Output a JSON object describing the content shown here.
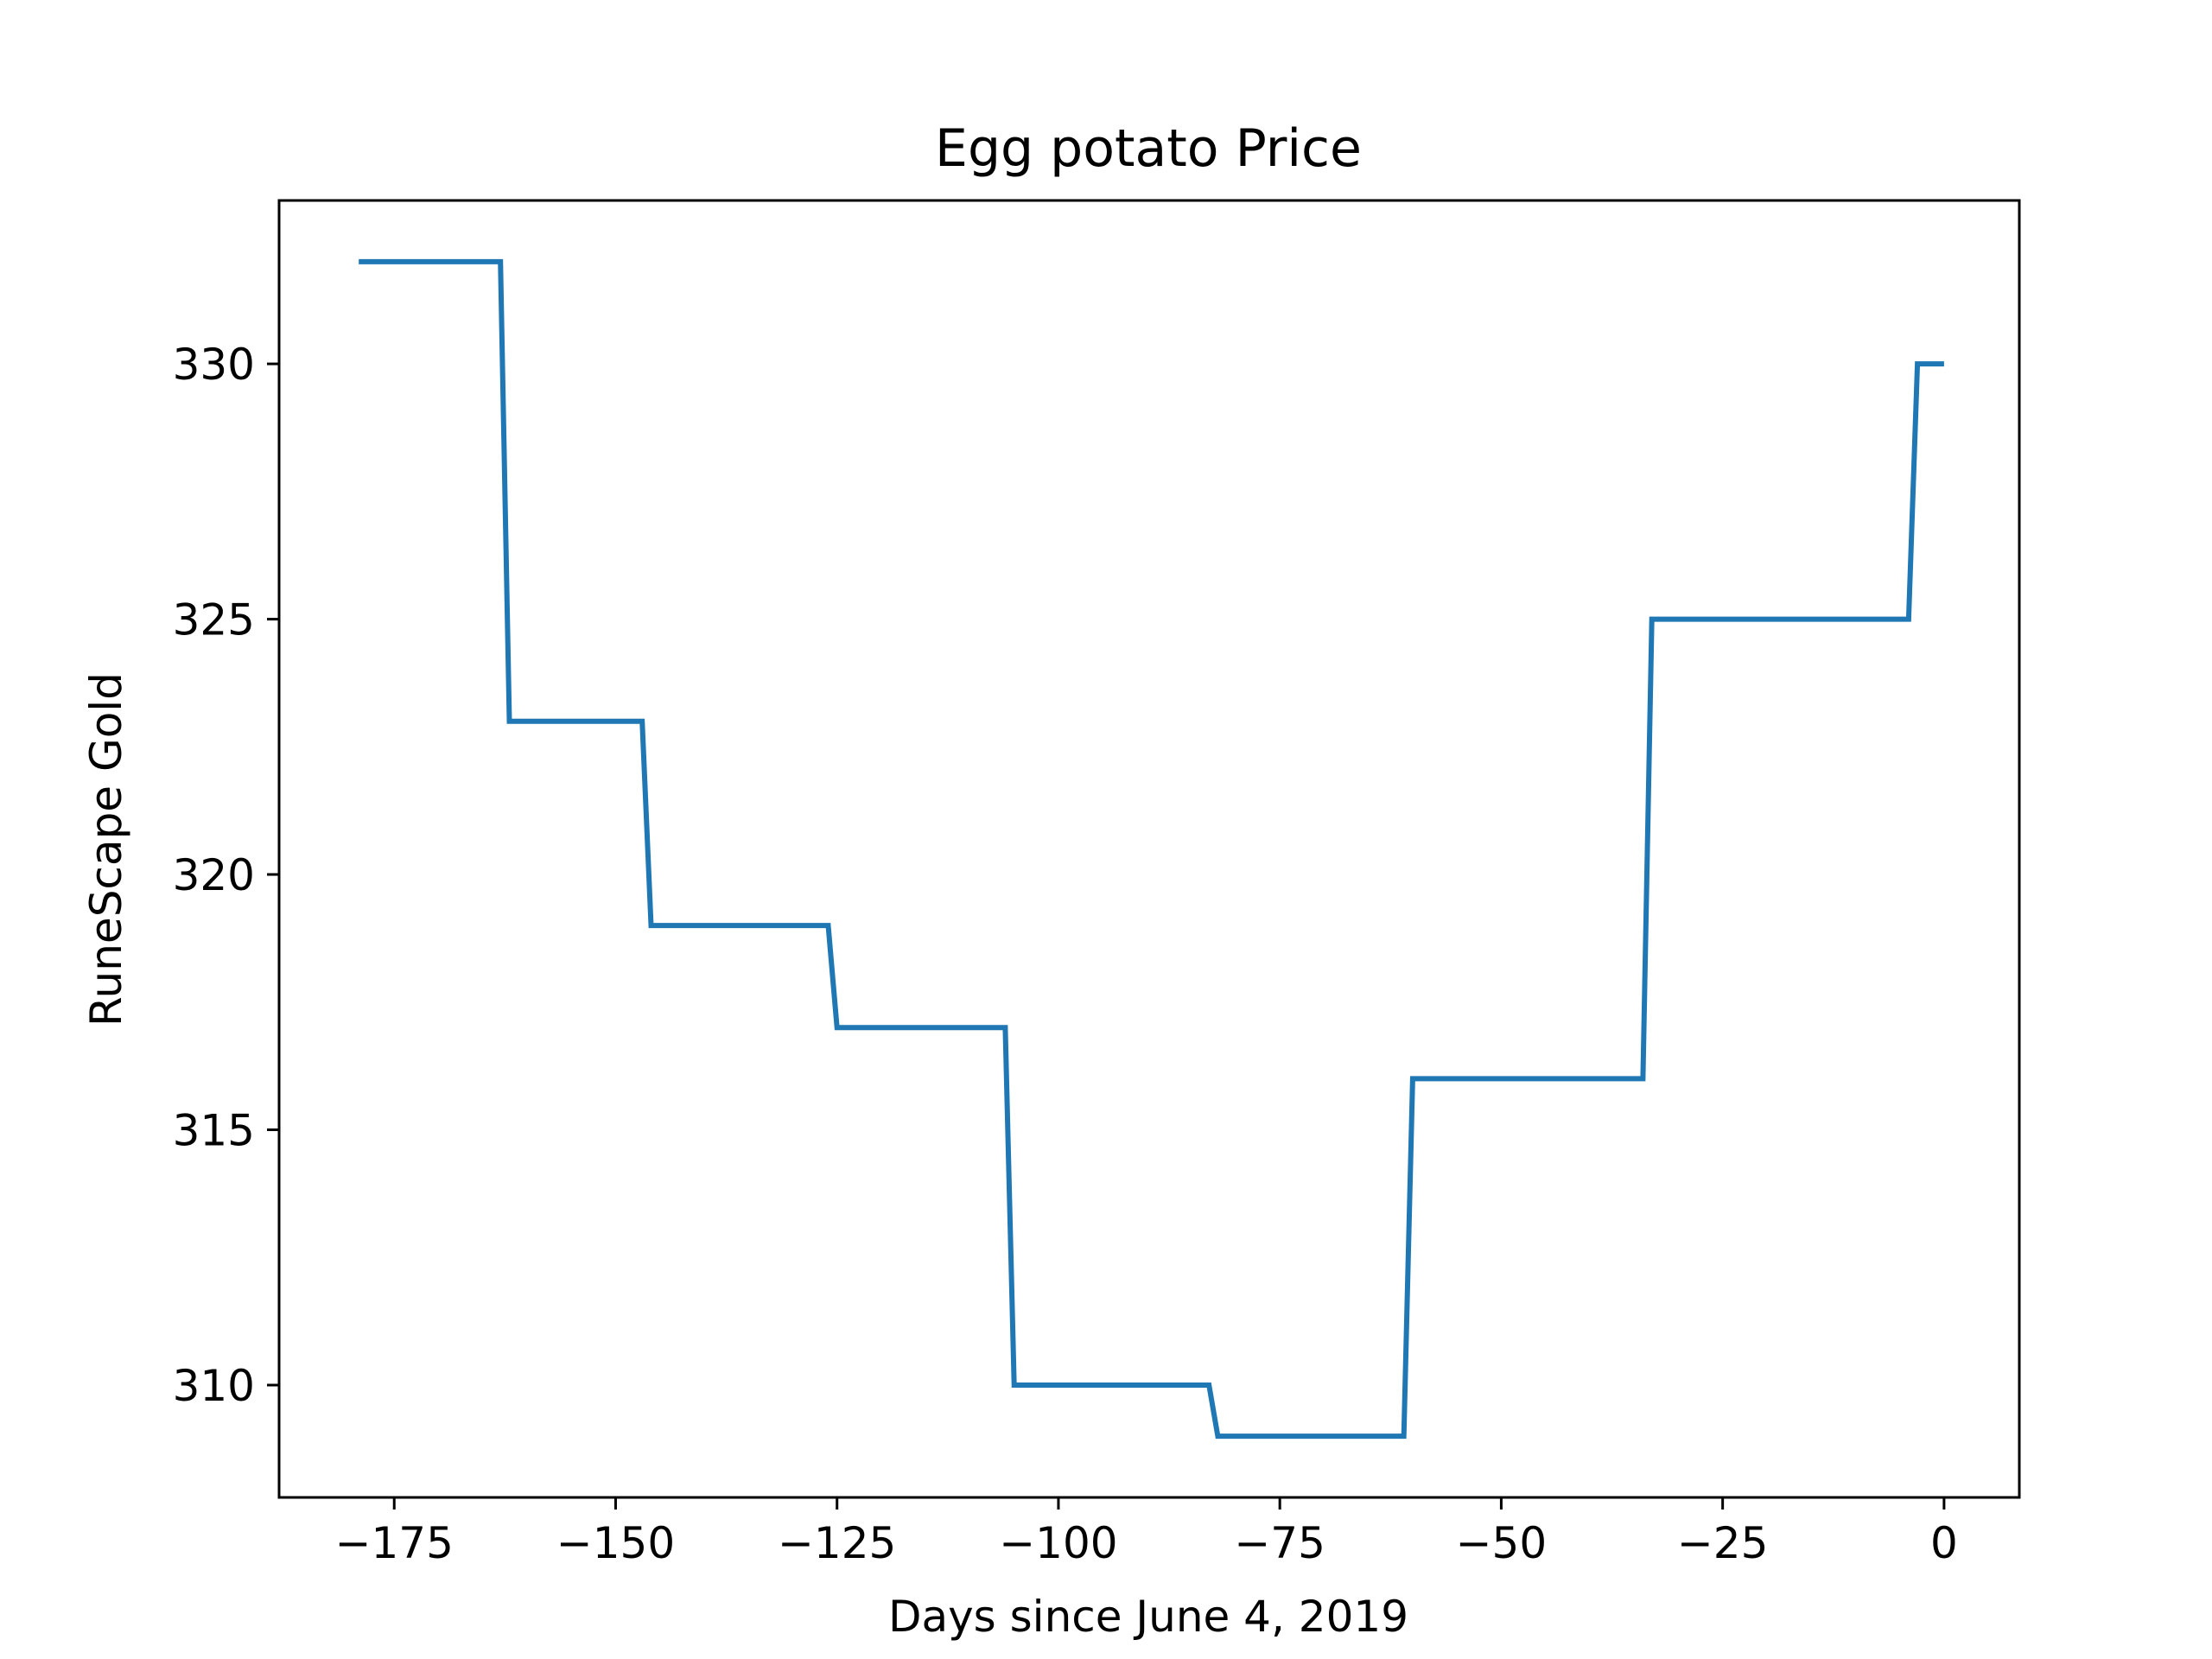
{
  "chart_data": {
    "type": "line",
    "title": "Egg potato Price",
    "xlabel": "Days since June 4, 2019",
    "ylabel": "RuneScape Gold",
    "xlim": [
      -188,
      8.5
    ],
    "ylim": [
      307.8,
      333.2
    ],
    "xticks": [
      -175,
      -150,
      -125,
      -100,
      -75,
      -50,
      -25,
      0
    ],
    "xtick_labels": [
      "−175",
      "−150",
      "−125",
      "−100",
      "−75",
      "−50",
      "−25",
      "0"
    ],
    "yticks": [
      310,
      315,
      320,
      325,
      330
    ],
    "ytick_labels": [
      "310",
      "315",
      "320",
      "325",
      "330"
    ],
    "grid": false,
    "series": [
      {
        "color": "#1f77b4",
        "x": [
          -179,
          -163,
          -162,
          -147,
          -146,
          -126,
          -125,
          -106,
          -105,
          -83,
          -82,
          -61,
          -60,
          -34,
          -33,
          -4,
          -3,
          0
        ],
        "y": [
          332,
          332,
          323,
          323,
          319,
          319,
          317,
          317,
          310,
          310,
          309,
          309,
          316,
          316,
          325,
          325,
          330,
          330
        ]
      }
    ]
  }
}
